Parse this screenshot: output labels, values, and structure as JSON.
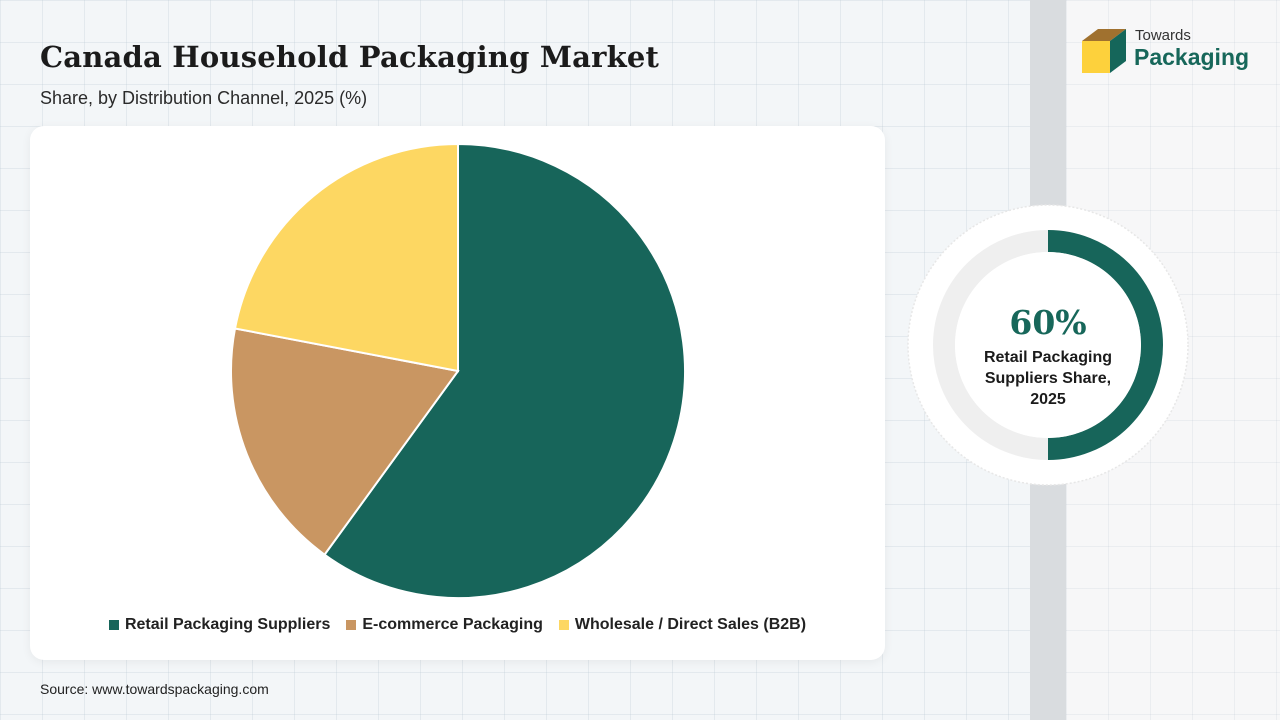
{
  "header": {
    "title": "Canada Household Packaging Market",
    "subtitle": "Share, by Distribution Channel, 2025 (%)"
  },
  "logo": {
    "line1": "Towards",
    "line2": "Packaging",
    "icon": "box-icon"
  },
  "chart_data": {
    "type": "pie",
    "categories": [
      "Retail Packaging Suppliers",
      "E-commerce Packaging",
      "Wholesale / Direct Sales (B2B)"
    ],
    "values": [
      60,
      18,
      22
    ],
    "unit": "%",
    "colors": [
      "#17655a",
      "#c99662",
      "#fdd762"
    ],
    "legend_position": "bottom"
  },
  "legend": {
    "items": [
      "Retail Packaging Suppliers",
      "E-commerce Packaging",
      "Wholesale / Direct Sales (B2B)"
    ]
  },
  "highlight": {
    "value": "60%",
    "fraction": 0.6,
    "label": "Retail Packaging Suppliers Share, 2025",
    "color": "#17655a"
  },
  "source": "Source: www.towardspackaging.com"
}
